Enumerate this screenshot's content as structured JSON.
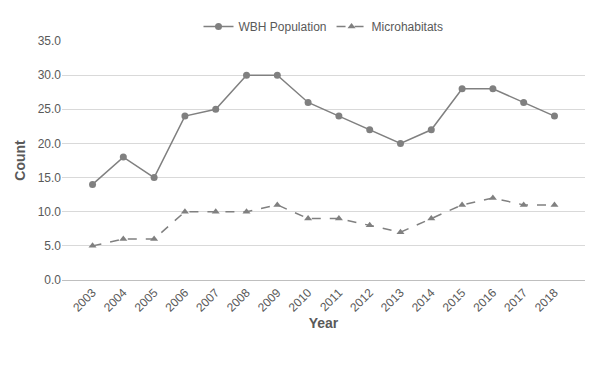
{
  "chart_data": {
    "type": "line",
    "x_label": "Year",
    "y_label": "Count",
    "categories": [
      "2003",
      "2004",
      "2005",
      "2006",
      "2007",
      "2008",
      "2009",
      "2010",
      "2011",
      "2012",
      "2013",
      "2014",
      "2015",
      "2016",
      "2017",
      "2018"
    ],
    "series": [
      {
        "name": "WBH Population",
        "color": "#808080",
        "marker": "circle",
        "line_style": "solid",
        "values": [
          14,
          18,
          15,
          24,
          25,
          30,
          30,
          26,
          24,
          22,
          20,
          22,
          28,
          28,
          26,
          24
        ]
      },
      {
        "name": "Microhabitats",
        "color": "#808080",
        "marker": "triangle",
        "line_style": "dash",
        "values": [
          5,
          6,
          6,
          10,
          10,
          10,
          11,
          9,
          9,
          8,
          7,
          9,
          11,
          12,
          11,
          11
        ]
      }
    ],
    "ylim": [
      0,
      35
    ],
    "yticks": [
      {
        "value": 0,
        "label": "0.0"
      },
      {
        "value": 5,
        "label": "5.0"
      },
      {
        "value": 10,
        "label": "10.0"
      },
      {
        "value": 15,
        "label": "15.0"
      },
      {
        "value": 20,
        "label": "20.0"
      },
      {
        "value": 25,
        "label": "25.0"
      },
      {
        "value": 30,
        "label": "30.0"
      },
      {
        "value": 35,
        "label": "35.0"
      }
    ],
    "grid": true,
    "legend": "top"
  }
}
